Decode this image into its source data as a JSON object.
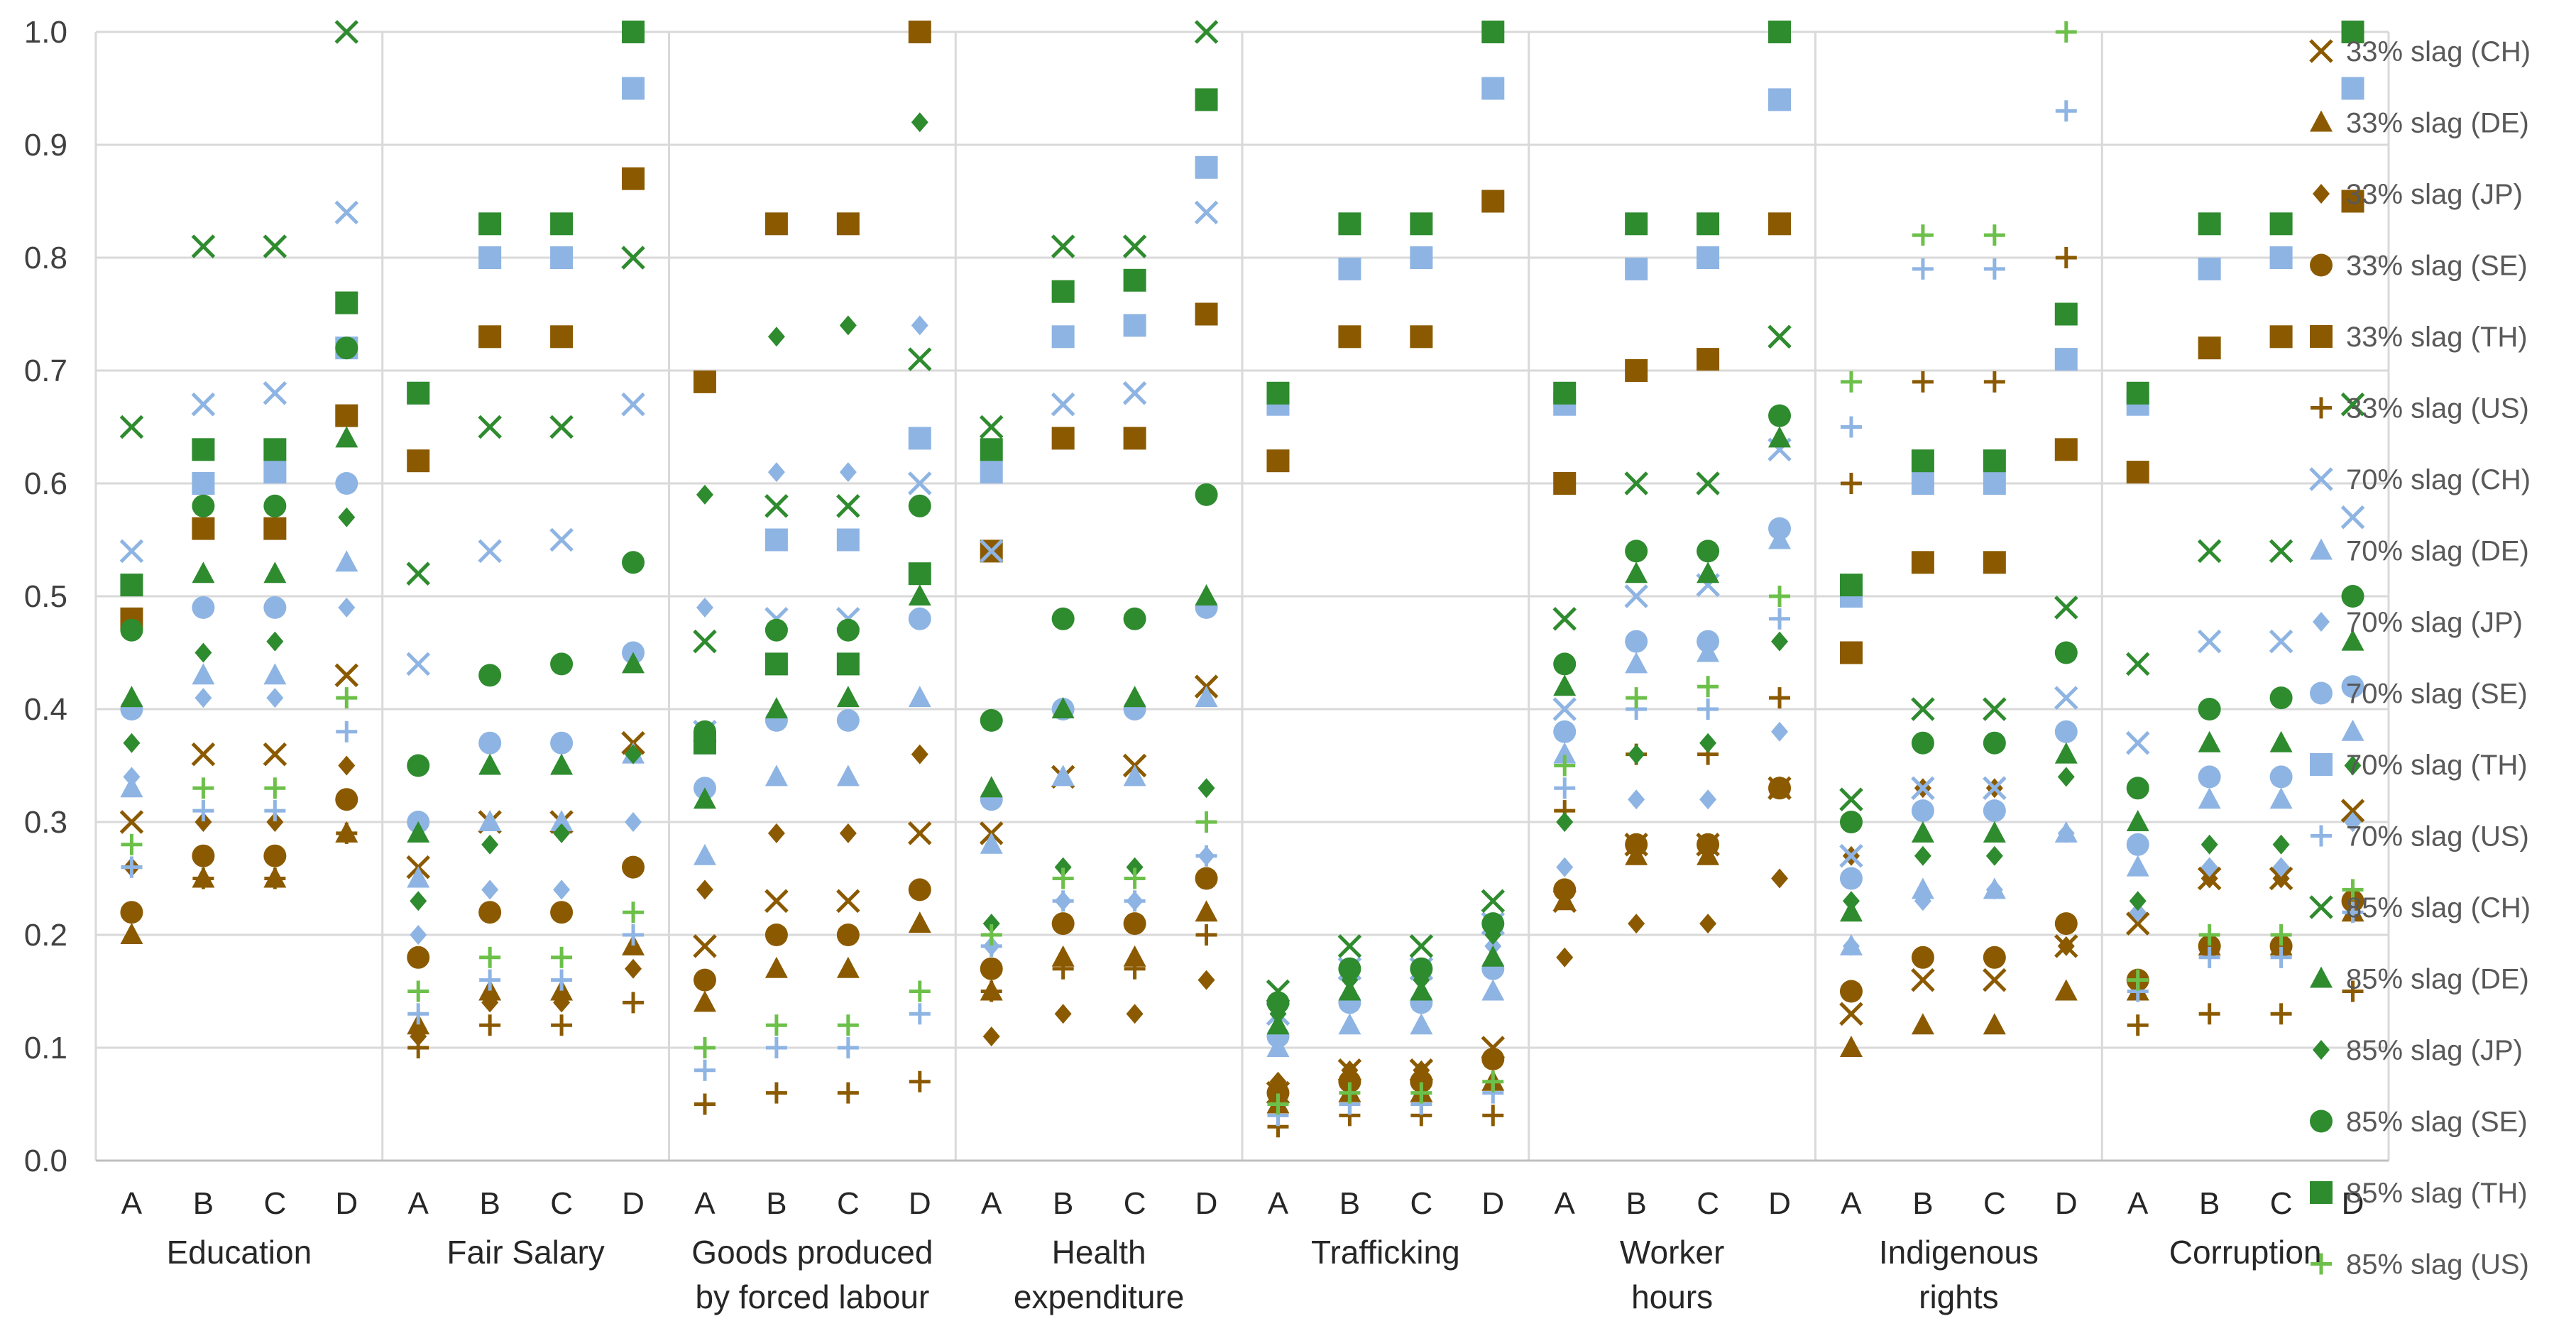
{
  "chart_data": {
    "type": "scatter",
    "ylim": [
      0,
      1.0
    ],
    "yticks": [
      "0.0",
      "0.1",
      "0.2",
      "0.3",
      "0.4",
      "0.5",
      "0.6",
      "0.7",
      "0.8",
      "0.9",
      "1.0"
    ],
    "ytick_values": [
      0,
      0.1,
      0.2,
      0.3,
      0.4,
      0.5,
      0.6,
      0.7,
      0.8,
      0.9,
      1.0
    ],
    "subcategories": [
      "A",
      "B",
      "C",
      "D"
    ],
    "groups": [
      [
        "Education"
      ],
      [
        "Fair Salary"
      ],
      [
        "Goods produced",
        "by forced labour"
      ],
      [
        "Health",
        "expenditure"
      ],
      [
        "Trafficking"
      ],
      [
        "Worker",
        "hours"
      ],
      [
        "Indigenous",
        "rights"
      ],
      [
        "Corruption"
      ]
    ],
    "grid": true,
    "legend_position": "right",
    "series": [
      {
        "name": "33% slag (CH)",
        "marker": "x",
        "color": "#8B5A00",
        "values": [
          [
            0.3,
            0.36,
            0.36,
            0.43
          ],
          [
            0.26,
            0.3,
            0.3,
            0.37
          ],
          [
            0.19,
            0.23,
            0.23,
            0.29
          ],
          [
            0.29,
            0.34,
            0.35,
            0.42
          ],
          [
            0.06,
            0.08,
            0.08,
            0.1
          ],
          [
            0.23,
            0.28,
            0.28,
            0.33
          ],
          [
            0.13,
            0.16,
            0.16,
            0.19
          ],
          [
            0.21,
            0.25,
            0.25,
            0.31
          ]
        ]
      },
      {
        "name": "33% slag (DE)",
        "marker": "triangle",
        "color": "#8B5A00",
        "values": [
          [
            0.2,
            0.25,
            0.25,
            0.29
          ],
          [
            0.12,
            0.15,
            0.15,
            0.19
          ],
          [
            0.14,
            0.17,
            0.17,
            0.21
          ],
          [
            0.15,
            0.18,
            0.18,
            0.22
          ],
          [
            0.05,
            0.06,
            0.06,
            0.07
          ],
          [
            0.23,
            0.27,
            0.27,
            0.33
          ],
          [
            0.1,
            0.12,
            0.12,
            0.15
          ],
          [
            0.15,
            0.19,
            0.19,
            0.22
          ]
        ]
      },
      {
        "name": "33% slag (JP)",
        "marker": "diamond",
        "color": "#8B5A00",
        "values": [
          [
            0.26,
            0.3,
            0.3,
            0.35
          ],
          [
            0.11,
            0.14,
            0.14,
            0.17
          ],
          [
            0.24,
            0.29,
            0.29,
            0.36
          ],
          [
            0.11,
            0.13,
            0.13,
            0.16
          ],
          [
            0.07,
            0.08,
            0.08,
            0.09
          ],
          [
            0.18,
            0.21,
            0.21,
            0.25
          ],
          [
            0.27,
            0.33,
            0.33,
            0.19
          ],
          [
            0.22,
            0.25,
            0.25,
            0.3
          ]
        ]
      },
      {
        "name": "33% slag (SE)",
        "marker": "circle",
        "color": "#8B5A00",
        "values": [
          [
            0.22,
            0.27,
            0.27,
            0.32
          ],
          [
            0.18,
            0.22,
            0.22,
            0.26
          ],
          [
            0.16,
            0.2,
            0.2,
            0.24
          ],
          [
            0.17,
            0.21,
            0.21,
            0.25
          ],
          [
            0.06,
            0.07,
            0.07,
            0.09
          ],
          [
            0.24,
            0.28,
            0.28,
            0.33
          ],
          [
            0.15,
            0.18,
            0.18,
            0.21
          ],
          [
            0.16,
            0.19,
            0.19,
            0.23
          ]
        ]
      },
      {
        "name": "33% slag (TH)",
        "marker": "square",
        "color": "#8B5A00",
        "values": [
          [
            0.48,
            0.56,
            0.56,
            0.66
          ],
          [
            0.62,
            0.73,
            0.73,
            0.87
          ],
          [
            0.69,
            0.83,
            0.83,
            1.0
          ],
          [
            0.54,
            0.64,
            0.64,
            0.75
          ],
          [
            0.62,
            0.73,
            0.73,
            0.85
          ],
          [
            0.6,
            0.7,
            0.71,
            0.83
          ],
          [
            0.45,
            0.53,
            0.53,
            0.63
          ],
          [
            0.61,
            0.72,
            0.73,
            0.85
          ]
        ]
      },
      {
        "name": "33% slag (US)",
        "marker": "plus",
        "color": "#8B5A00",
        "values": [
          [
            0.26,
            0.25,
            0.25,
            0.29
          ],
          [
            0.1,
            0.12,
            0.12,
            0.14
          ],
          [
            0.05,
            0.06,
            0.06,
            0.07
          ],
          [
            0.15,
            0.17,
            0.17,
            0.2
          ],
          [
            0.03,
            0.04,
            0.04,
            0.04
          ],
          [
            0.31,
            0.36,
            0.36,
            0.41
          ],
          [
            0.6,
            0.69,
            0.69,
            0.8
          ],
          [
            0.12,
            0.13,
            0.13,
            0.15
          ]
        ]
      },
      {
        "name": "70% slag (CH)",
        "marker": "x",
        "color": "#8EB4E3",
        "values": [
          [
            0.54,
            0.67,
            0.68,
            0.84
          ],
          [
            0.44,
            0.54,
            0.55,
            0.67
          ],
          [
            0.38,
            0.48,
            0.48,
            0.6
          ],
          [
            0.54,
            0.67,
            0.68,
            0.84
          ],
          [
            0.13,
            0.17,
            0.17,
            0.21
          ],
          [
            0.4,
            0.5,
            0.51,
            0.63
          ],
          [
            0.27,
            0.33,
            0.33,
            0.41
          ],
          [
            0.37,
            0.46,
            0.46,
            0.57
          ]
        ]
      },
      {
        "name": "70% slag (DE)",
        "marker": "triangle",
        "color": "#8EB4E3",
        "values": [
          [
            0.33,
            0.43,
            0.43,
            0.53
          ],
          [
            0.25,
            0.3,
            0.3,
            0.36
          ],
          [
            0.27,
            0.34,
            0.34,
            0.41
          ],
          [
            0.28,
            0.34,
            0.34,
            0.41
          ],
          [
            0.1,
            0.12,
            0.12,
            0.15
          ],
          [
            0.36,
            0.44,
            0.45,
            0.55
          ],
          [
            0.19,
            0.24,
            0.24,
            0.29
          ],
          [
            0.26,
            0.32,
            0.32,
            0.38
          ]
        ]
      },
      {
        "name": "70% slag (JP)",
        "marker": "diamond",
        "color": "#8EB4E3",
        "values": [
          [
            0.34,
            0.41,
            0.41,
            0.49
          ],
          [
            0.2,
            0.24,
            0.24,
            0.3
          ],
          [
            0.49,
            0.61,
            0.61,
            0.74
          ],
          [
            0.19,
            0.23,
            0.23,
            0.27
          ],
          [
            0.13,
            0.16,
            0.16,
            0.19
          ],
          [
            0.26,
            0.32,
            0.32,
            0.38
          ],
          [
            0.19,
            0.23,
            0.24,
            0.29
          ],
          [
            0.22,
            0.26,
            0.26,
            0.3
          ]
        ]
      },
      {
        "name": "70% slag (SE)",
        "marker": "circle",
        "color": "#8EB4E3",
        "values": [
          [
            0.4,
            0.49,
            0.49,
            0.6
          ],
          [
            0.3,
            0.37,
            0.37,
            0.45
          ],
          [
            0.33,
            0.39,
            0.39,
            0.48
          ],
          [
            0.32,
            0.4,
            0.4,
            0.49
          ],
          [
            0.11,
            0.14,
            0.14,
            0.17
          ],
          [
            0.38,
            0.46,
            0.46,
            0.56
          ],
          [
            0.25,
            0.31,
            0.31,
            0.38
          ],
          [
            0.28,
            0.34,
            0.34,
            0.42
          ]
        ]
      },
      {
        "name": "70% slag (TH)",
        "marker": "square",
        "color": "#8EB4E3",
        "values": [
          [
            0.51,
            0.6,
            0.61,
            0.72
          ],
          [
            0.68,
            0.8,
            0.8,
            0.95
          ],
          [
            0.37,
            0.55,
            0.55,
            0.64
          ],
          [
            0.61,
            0.73,
            0.74,
            0.88
          ],
          [
            0.67,
            0.79,
            0.8,
            0.95
          ],
          [
            0.67,
            0.79,
            0.8,
            0.94
          ],
          [
            0.5,
            0.6,
            0.6,
            0.71
          ],
          [
            0.67,
            0.79,
            0.8,
            0.95
          ]
        ]
      },
      {
        "name": "70% slag (US)",
        "marker": "plus",
        "color": "#8EB4E3",
        "values": [
          [
            0.26,
            0.31,
            0.31,
            0.38
          ],
          [
            0.13,
            0.16,
            0.16,
            0.2
          ],
          [
            0.08,
            0.1,
            0.1,
            0.13
          ],
          [
            0.19,
            0.23,
            0.23,
            0.27
          ],
          [
            0.04,
            0.05,
            0.05,
            0.06
          ],
          [
            0.33,
            0.4,
            0.4,
            0.48
          ],
          [
            0.65,
            0.79,
            0.79,
            0.93
          ],
          [
            0.15,
            0.18,
            0.18,
            0.22
          ]
        ]
      },
      {
        "name": "85% slag (CH)",
        "marker": "x",
        "color": "#2E8B2E",
        "values": [
          [
            0.65,
            0.81,
            0.81,
            1.0
          ],
          [
            0.52,
            0.65,
            0.65,
            0.8
          ],
          [
            0.46,
            0.58,
            0.58,
            0.71
          ],
          [
            0.65,
            0.81,
            0.81,
            1.0
          ],
          [
            0.15,
            0.19,
            0.19,
            0.23
          ],
          [
            0.48,
            0.6,
            0.6,
            0.73
          ],
          [
            0.32,
            0.4,
            0.4,
            0.49
          ],
          [
            0.44,
            0.54,
            0.54,
            0.67
          ]
        ]
      },
      {
        "name": "85% slag (DE)",
        "marker": "triangle",
        "color": "#2E8B2E",
        "values": [
          [
            0.41,
            0.52,
            0.52,
            0.64
          ],
          [
            0.29,
            0.35,
            0.35,
            0.44
          ],
          [
            0.32,
            0.4,
            0.41,
            0.5
          ],
          [
            0.33,
            0.4,
            0.41,
            0.5
          ],
          [
            0.12,
            0.15,
            0.15,
            0.18
          ],
          [
            0.42,
            0.52,
            0.52,
            0.64
          ],
          [
            0.22,
            0.29,
            0.29,
            0.36
          ],
          [
            0.3,
            0.37,
            0.37,
            0.46
          ]
        ]
      },
      {
        "name": "85% slag (JP)",
        "marker": "diamond",
        "color": "#2E8B2E",
        "values": [
          [
            0.37,
            0.45,
            0.46,
            0.57
          ],
          [
            0.23,
            0.28,
            0.29,
            0.36
          ],
          [
            0.59,
            0.73,
            0.74,
            0.92
          ],
          [
            0.21,
            0.26,
            0.26,
            0.33
          ],
          [
            0.13,
            0.16,
            0.16,
            0.2
          ],
          [
            0.3,
            0.36,
            0.37,
            0.46
          ],
          [
            0.23,
            0.27,
            0.27,
            0.34
          ],
          [
            0.23,
            0.28,
            0.28,
            0.35
          ]
        ]
      },
      {
        "name": "85% slag (SE)",
        "marker": "circle",
        "color": "#2E8B2E",
        "values": [
          [
            0.47,
            0.58,
            0.58,
            0.72
          ],
          [
            0.35,
            0.43,
            0.44,
            0.53
          ],
          [
            0.38,
            0.47,
            0.47,
            0.58
          ],
          [
            0.39,
            0.48,
            0.48,
            0.59
          ],
          [
            0.14,
            0.17,
            0.17,
            0.21
          ],
          [
            0.44,
            0.54,
            0.54,
            0.66
          ],
          [
            0.3,
            0.37,
            0.37,
            0.45
          ],
          [
            0.33,
            0.4,
            0.41,
            0.5
          ]
        ]
      },
      {
        "name": "85% slag (TH)",
        "marker": "square",
        "color": "#2E8B2E",
        "values": [
          [
            0.51,
            0.63,
            0.63,
            0.76
          ],
          [
            0.68,
            0.83,
            0.83,
            1.0
          ],
          [
            0.37,
            0.44,
            0.44,
            0.52
          ],
          [
            0.63,
            0.77,
            0.78,
            0.94
          ],
          [
            0.68,
            0.83,
            0.83,
            1.0
          ],
          [
            0.68,
            0.83,
            0.83,
            1.0
          ],
          [
            0.51,
            0.62,
            0.62,
            0.75
          ],
          [
            0.68,
            0.83,
            0.83,
            1.0
          ]
        ]
      },
      {
        "name": "85% slag (US)",
        "marker": "plus",
        "color": "#6CC04A",
        "values": [
          [
            0.28,
            0.33,
            0.33,
            0.41
          ],
          [
            0.15,
            0.18,
            0.18,
            0.22
          ],
          [
            0.1,
            0.12,
            0.12,
            0.15
          ],
          [
            0.2,
            0.25,
            0.25,
            0.3
          ],
          [
            0.05,
            0.06,
            0.06,
            0.07
          ],
          [
            0.35,
            0.41,
            0.42,
            0.5
          ],
          [
            0.69,
            0.82,
            0.82,
            1.0
          ],
          [
            0.16,
            0.2,
            0.2,
            0.24
          ]
        ]
      }
    ]
  }
}
